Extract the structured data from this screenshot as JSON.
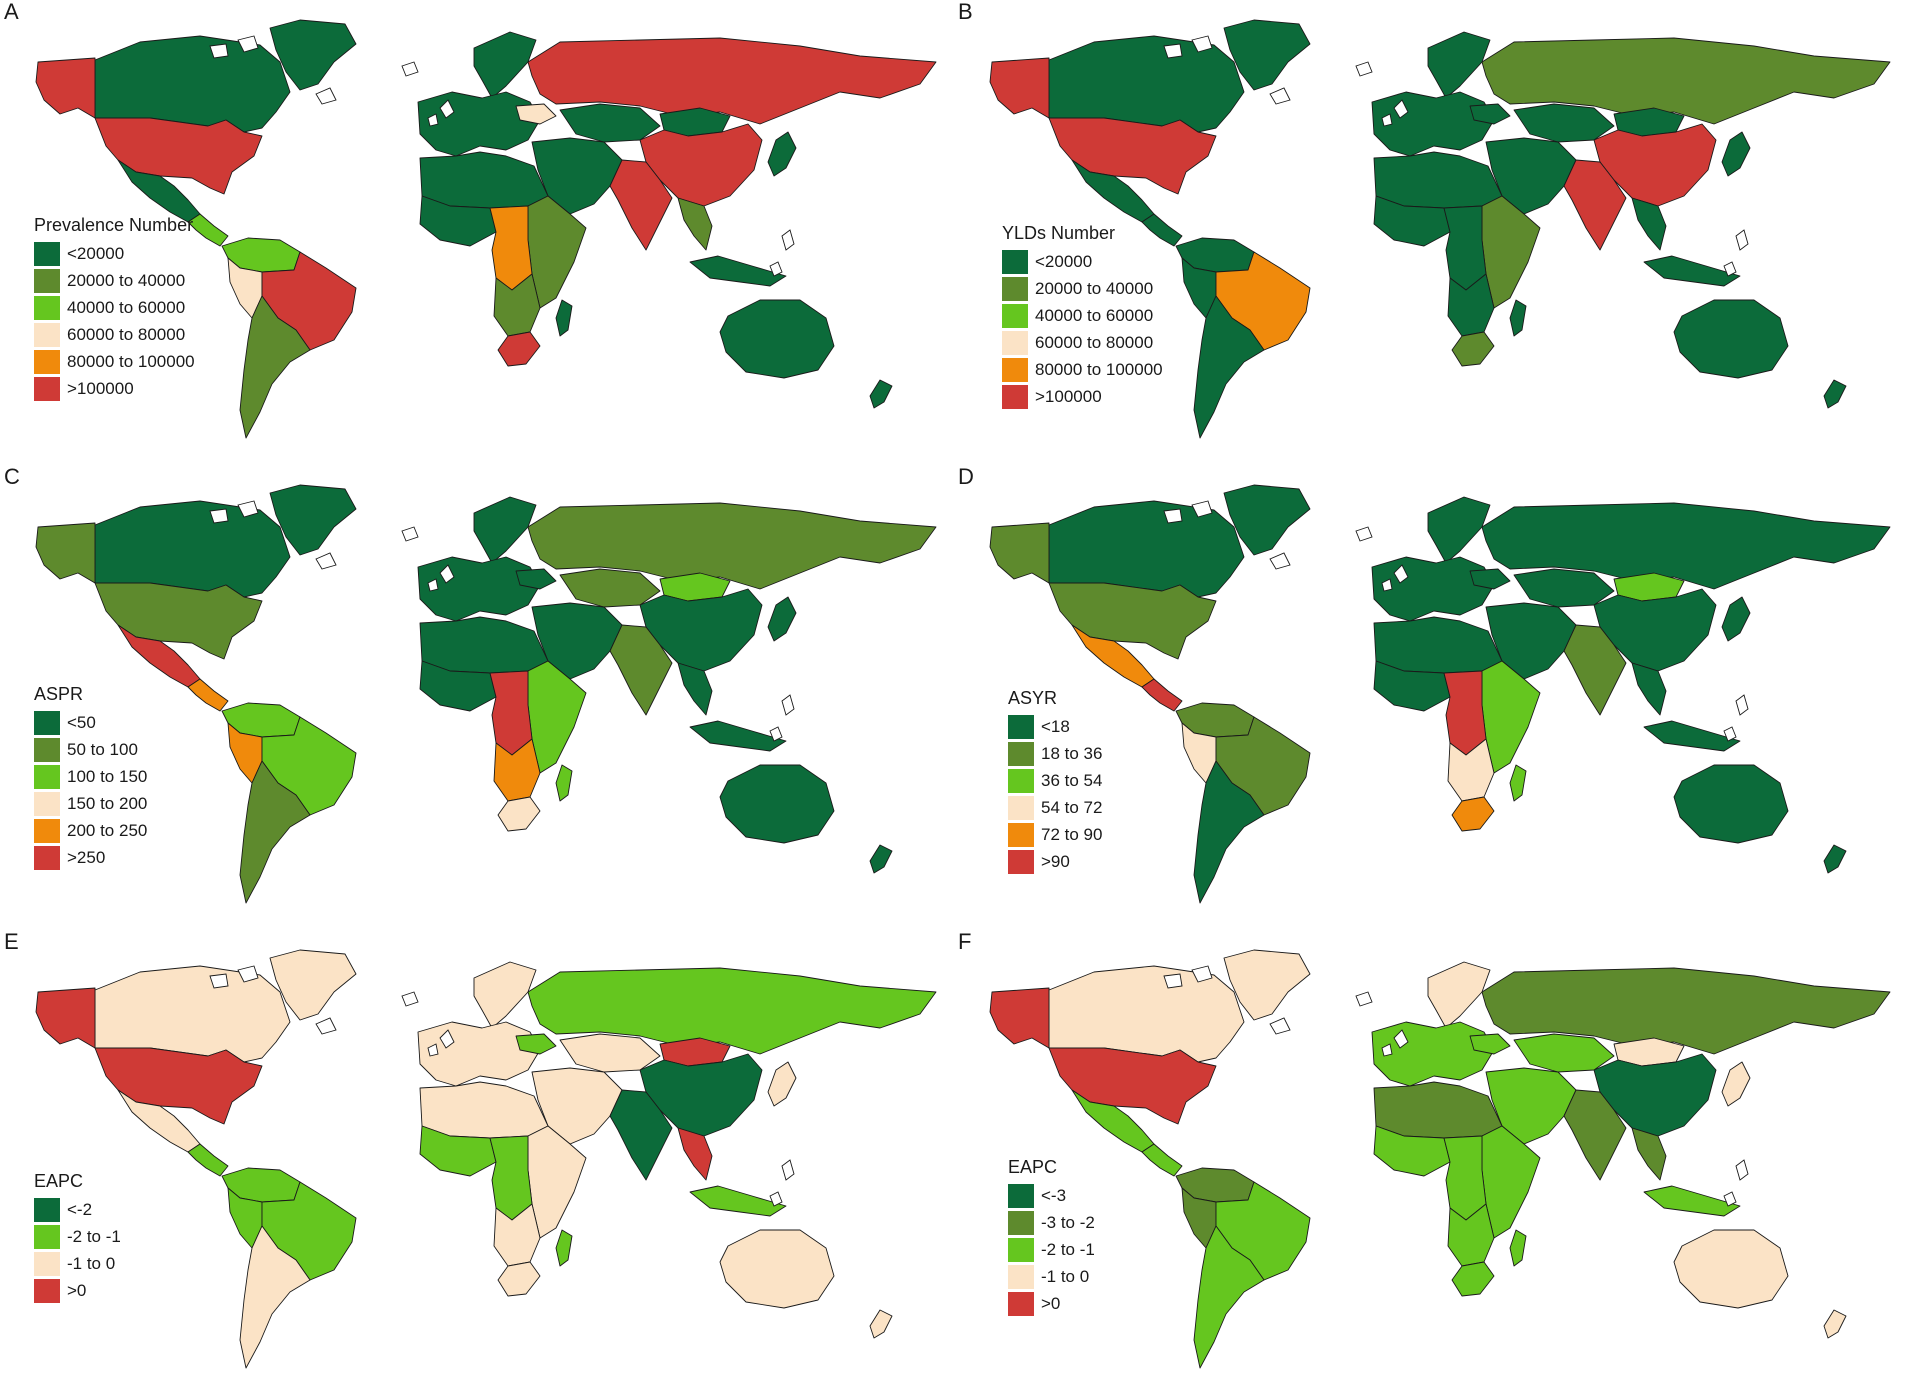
{
  "colors": {
    "dark_green": "#0c6b3a",
    "olive_green": "#5e8a2d",
    "light_green": "#65c61f",
    "cream": "#fbe3c6",
    "orange": "#f08a0c",
    "red": "#cf3a36",
    "border": "#1a1a1a"
  },
  "panels": [
    {
      "letter": "A",
      "legend_title": "Prevalence Number",
      "legend": [
        {
          "label": "<20000",
          "color": "#0c6b3a"
        },
        {
          "label": "20000 to 40000",
          "color": "#5e8a2d"
        },
        {
          "label": "40000 to 60000",
          "color": "#65c61f"
        },
        {
          "label": "60000 to 80000",
          "color": "#fbe3c6"
        },
        {
          "label": "80000 to 100000",
          "color": "#f08a0c"
        },
        {
          "label": ">100000",
          "color": "#cf3a36"
        }
      ],
      "regions": {
        "alaska": "red",
        "canada": "dark_green",
        "greenland": "dark_green",
        "usa": "red",
        "mexico": "dark_green",
        "central_america": "light_green",
        "northern_south_america": "light_green",
        "peru": "cream",
        "brazil": "red",
        "argentina": "olive_green",
        "russia": "red",
        "scandinavia": "dark_green",
        "europe": "dark_green",
        "ukraine": "cream",
        "kazakhstan": "dark_green",
        "mongolia": "dark_green",
        "china": "red",
        "middle_east": "dark_green",
        "india": "red",
        "southeast_asia": "olive_green",
        "indonesia": "dark_green",
        "japan": "dark_green",
        "north_africa": "dark_green",
        "west_africa": "dark_green",
        "east_africa": "olive_green",
        "central_africa": "orange",
        "southern_africa": "olive_green",
        "south_africa": "red",
        "madagascar": "dark_green",
        "australia": "dark_green",
        "new_zealand": "dark_green"
      }
    },
    {
      "letter": "B",
      "legend_title": "YLDs Number",
      "legend": [
        {
          "label": "<20000",
          "color": "#0c6b3a"
        },
        {
          "label": "20000 to 40000",
          "color": "#5e8a2d"
        },
        {
          "label": "40000 to 60000",
          "color": "#65c61f"
        },
        {
          "label": "60000 to 80000",
          "color": "#fbe3c6"
        },
        {
          "label": "80000 to 100000",
          "color": "#f08a0c"
        },
        {
          "label": ">100000",
          "color": "#cf3a36"
        }
      ],
      "regions": {
        "alaska": "red",
        "canada": "dark_green",
        "greenland": "dark_green",
        "usa": "red",
        "mexico": "dark_green",
        "central_america": "dark_green",
        "northern_south_america": "dark_green",
        "peru": "dark_green",
        "brazil": "orange",
        "argentina": "dark_green",
        "russia": "olive_green",
        "scandinavia": "dark_green",
        "europe": "dark_green",
        "ukraine": "dark_green",
        "kazakhstan": "dark_green",
        "mongolia": "dark_green",
        "china": "red",
        "middle_east": "dark_green",
        "india": "red",
        "southeast_asia": "dark_green",
        "indonesia": "dark_green",
        "japan": "dark_green",
        "north_africa": "dark_green",
        "west_africa": "dark_green",
        "east_africa": "olive_green",
        "central_africa": "dark_green",
        "southern_africa": "dark_green",
        "south_africa": "olive_green",
        "madagascar": "dark_green",
        "australia": "dark_green",
        "new_zealand": "dark_green"
      }
    },
    {
      "letter": "C",
      "legend_title": "ASPR",
      "legend": [
        {
          "label": "<50",
          "color": "#0c6b3a"
        },
        {
          "label": "50 to 100",
          "color": "#5e8a2d"
        },
        {
          "label": "100 to 150",
          "color": "#65c61f"
        },
        {
          "label": "150 to 200",
          "color": "#fbe3c6"
        },
        {
          "label": "200 to 250",
          "color": "#f08a0c"
        },
        {
          "label": ">250",
          "color": "#cf3a36"
        }
      ],
      "regions": {
        "alaska": "olive_green",
        "canada": "dark_green",
        "greenland": "dark_green",
        "usa": "olive_green",
        "mexico": "red",
        "central_america": "orange",
        "northern_south_america": "light_green",
        "peru": "orange",
        "brazil": "light_green",
        "argentina": "olive_green",
        "russia": "olive_green",
        "scandinavia": "dark_green",
        "europe": "dark_green",
        "ukraine": "dark_green",
        "kazakhstan": "olive_green",
        "mongolia": "light_green",
        "china": "dark_green",
        "middle_east": "dark_green",
        "india": "olive_green",
        "southeast_asia": "dark_green",
        "indonesia": "dark_green",
        "japan": "dark_green",
        "north_africa": "dark_green",
        "west_africa": "dark_green",
        "east_africa": "light_green",
        "central_africa": "red",
        "southern_africa": "orange",
        "south_africa": "cream",
        "madagascar": "light_green",
        "australia": "dark_green",
        "new_zealand": "dark_green"
      }
    },
    {
      "letter": "D",
      "legend_title": "ASYR",
      "legend": [
        {
          "label": "<18",
          "color": "#0c6b3a"
        },
        {
          "label": "18 to 36",
          "color": "#5e8a2d"
        },
        {
          "label": "36 to 54",
          "color": "#65c61f"
        },
        {
          "label": "54 to 72",
          "color": "#fbe3c6"
        },
        {
          "label": "72 to 90",
          "color": "#f08a0c"
        },
        {
          "label": ">90",
          "color": "#cf3a36"
        }
      ],
      "regions": {
        "alaska": "olive_green",
        "canada": "dark_green",
        "greenland": "dark_green",
        "usa": "olive_green",
        "mexico": "orange",
        "central_america": "red",
        "northern_south_america": "olive_green",
        "peru": "cream",
        "brazil": "olive_green",
        "argentina": "dark_green",
        "russia": "dark_green",
        "scandinavia": "dark_green",
        "europe": "dark_green",
        "ukraine": "dark_green",
        "kazakhstan": "dark_green",
        "mongolia": "light_green",
        "china": "dark_green",
        "middle_east": "dark_green",
        "india": "olive_green",
        "southeast_asia": "dark_green",
        "indonesia": "dark_green",
        "japan": "dark_green",
        "north_africa": "dark_green",
        "west_africa": "dark_green",
        "east_africa": "light_green",
        "central_africa": "red",
        "southern_africa": "cream",
        "south_africa": "orange",
        "madagascar": "light_green",
        "australia": "dark_green",
        "new_zealand": "dark_green"
      }
    },
    {
      "letter": "E",
      "legend_title": "EAPC",
      "legend": [
        {
          "label": "<-2",
          "color": "#0c6b3a"
        },
        {
          "label": "-2 to -1",
          "color": "#65c61f"
        },
        {
          "label": "-1 to 0",
          "color": "#fbe3c6"
        },
        {
          "label": ">0",
          "color": "#cf3a36"
        }
      ],
      "regions": {
        "alaska": "red",
        "canada": "cream",
        "greenland": "cream",
        "usa": "red",
        "mexico": "cream",
        "central_america": "light_green",
        "northern_south_america": "light_green",
        "peru": "light_green",
        "brazil": "light_green",
        "argentina": "cream",
        "russia": "light_green",
        "scandinavia": "cream",
        "europe": "cream",
        "ukraine": "light_green",
        "kazakhstan": "cream",
        "mongolia": "red",
        "china": "dark_green",
        "middle_east": "cream",
        "india": "dark_green",
        "southeast_asia": "red",
        "indonesia": "light_green",
        "japan": "cream",
        "north_africa": "cream",
        "west_africa": "light_green",
        "east_africa": "cream",
        "central_africa": "light_green",
        "southern_africa": "cream",
        "south_africa": "cream",
        "madagascar": "light_green",
        "australia": "cream",
        "new_zealand": "cream"
      }
    },
    {
      "letter": "F",
      "legend_title": "EAPC",
      "legend": [
        {
          "label": "<-3",
          "color": "#0c6b3a"
        },
        {
          "label": "-3 to -2",
          "color": "#5e8a2d"
        },
        {
          "label": "-2 to -1",
          "color": "#65c61f"
        },
        {
          "label": "-1 to 0",
          "color": "#fbe3c6"
        },
        {
          "label": ">0",
          "color": "#cf3a36"
        }
      ],
      "regions": {
        "alaska": "red",
        "canada": "cream",
        "greenland": "cream",
        "usa": "red",
        "mexico": "light_green",
        "central_america": "light_green",
        "northern_south_america": "olive_green",
        "peru": "olive_green",
        "brazil": "light_green",
        "argentina": "light_green",
        "russia": "olive_green",
        "scandinavia": "cream",
        "europe": "light_green",
        "ukraine": "light_green",
        "kazakhstan": "light_green",
        "mongolia": "cream",
        "china": "dark_green",
        "middle_east": "light_green",
        "india": "olive_green",
        "southeast_asia": "olive_green",
        "indonesia": "light_green",
        "japan": "cream",
        "north_africa": "olive_green",
        "west_africa": "light_green",
        "east_africa": "light_green",
        "central_africa": "light_green",
        "southern_africa": "light_green",
        "south_africa": "light_green",
        "madagascar": "light_green",
        "australia": "cream",
        "new_zealand": "cream"
      }
    }
  ]
}
